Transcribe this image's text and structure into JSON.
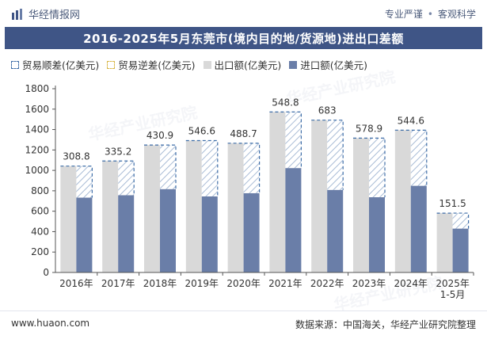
{
  "header": {
    "brand": "华经情报网",
    "links": [
      "专业严谨",
      "客观科学"
    ]
  },
  "title": "2016-2025年5月东莞市(境内目的地/货源地)进出口差额",
  "legend": {
    "surplus": "贸易顺差(亿美元)",
    "deficit": "贸易逆差(亿美元)",
    "export": "出口额(亿美元)",
    "import": "进口额(亿美元)"
  },
  "footer": {
    "url": "www.huaon.com",
    "source": "数据来源：中国海关，华经产业研究院整理"
  },
  "watermark_text": "华经产业研究院",
  "colors": {
    "title_bg": "#3f5586",
    "export": "#d9d9d9",
    "import": "#6a7ea8",
    "surplus_border": "#3f6ea8",
    "hatch": "#a9bcd6"
  },
  "chart_data": {
    "type": "bar",
    "categories": [
      "2016年",
      "2017年",
      "2018年",
      "2019年",
      "2020年",
      "2021年",
      "2022年",
      "2023年",
      "2024年",
      "2025年\n1-5月"
    ],
    "series": [
      {
        "name": "出口额(亿美元)",
        "values": [
          1042,
          1092,
          1248,
          1292,
          1266,
          1572,
          1492,
          1316,
          1394,
          581
        ]
      },
      {
        "name": "进口额(亿美元)",
        "values": [
          733,
          757,
          817,
          745,
          777,
          1023,
          809,
          737,
          849,
          430
        ]
      },
      {
        "name": "贸易顺差(亿美元)",
        "values": [
          308.8,
          335.2,
          430.9,
          546.6,
          488.7,
          548.8,
          683,
          578.9,
          544.6,
          151.5
        ]
      },
      {
        "name": "贸易逆差(亿美元)",
        "values": [
          0,
          0,
          0,
          0,
          0,
          0,
          0,
          0,
          0,
          0
        ]
      }
    ],
    "ylim": [
      0,
      1800
    ],
    "yticks": [
      0,
      200,
      400,
      600,
      800,
      1000,
      1200,
      1400,
      1600,
      1800
    ],
    "legend_position": "top-left",
    "grid": false
  }
}
